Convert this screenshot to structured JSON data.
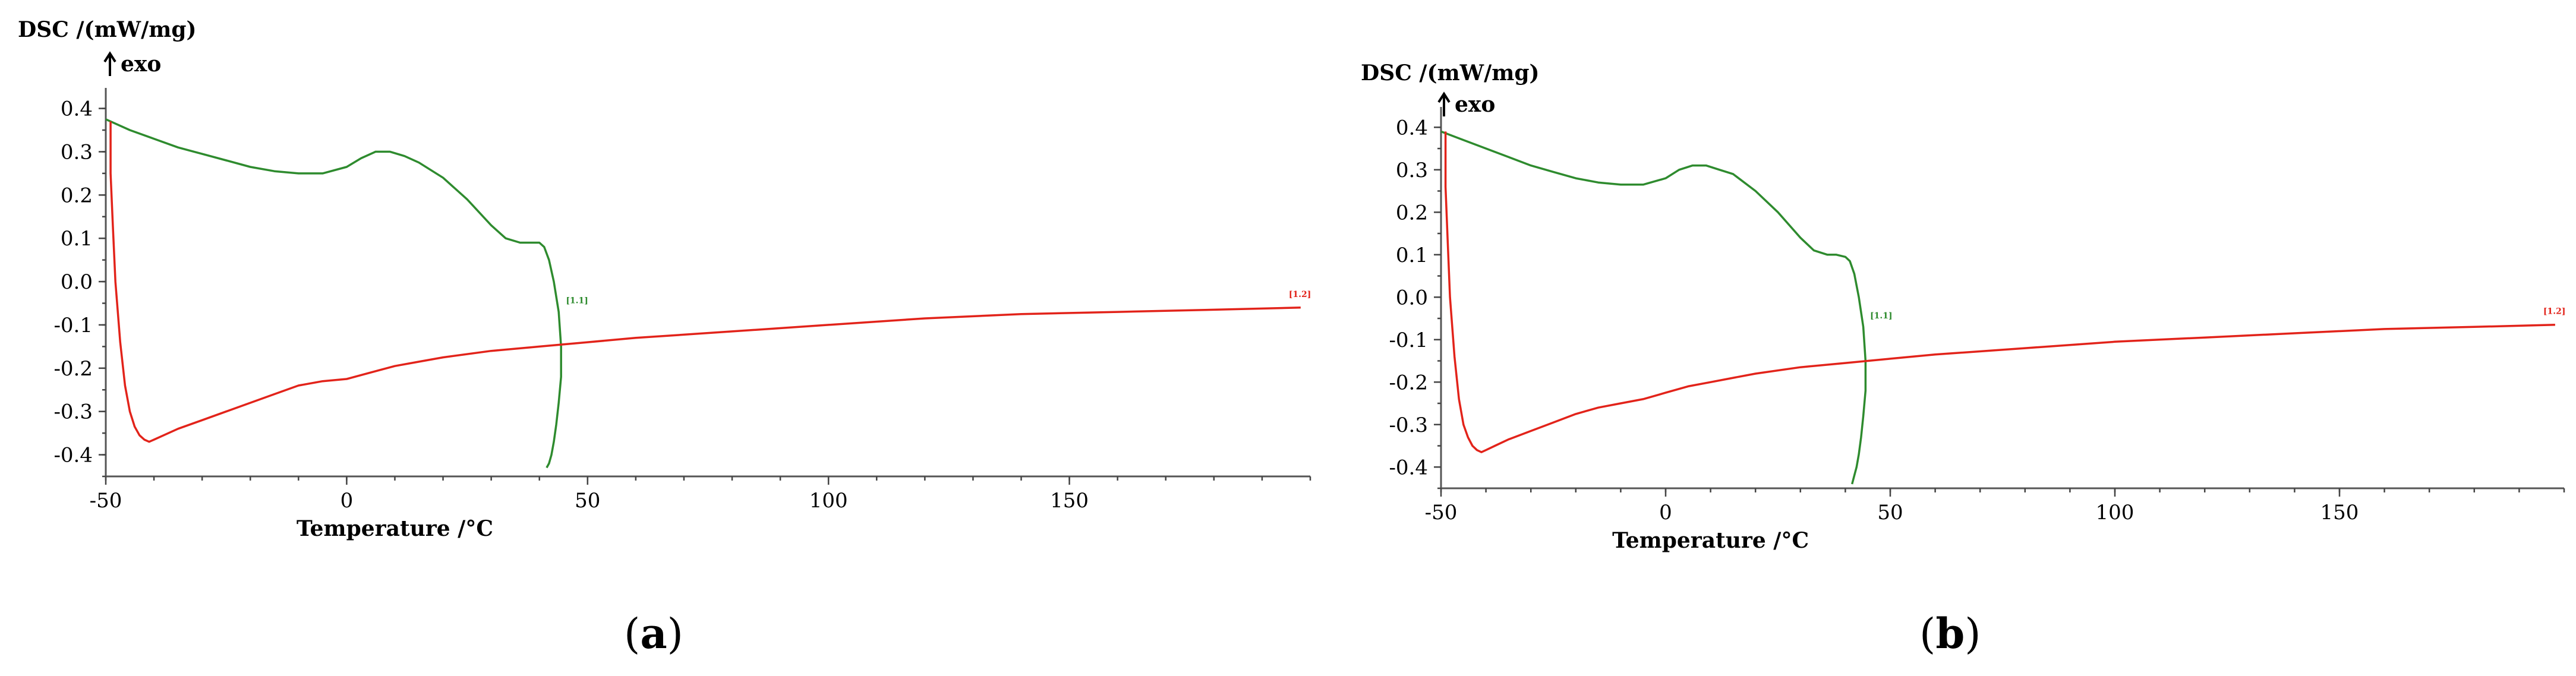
{
  "chart_data": [
    {
      "type": "line",
      "panel_label": "a",
      "ylabel": "DSC /(mW/mg)",
      "y_direction_label": "exo",
      "xlabel": "Temperature /°C",
      "xlim": [
        -50,
        200
      ],
      "ylim": [
        -0.45,
        0.42
      ],
      "x_ticks": [
        -50,
        0,
        50,
        100,
        150
      ],
      "y_ticks": [
        0.4,
        0.3,
        0.2,
        0.1,
        0.0,
        -0.1,
        -0.2,
        -0.3,
        -0.4
      ],
      "x_tick_labels": [
        "-50",
        "0",
        "50",
        "100",
        "150"
      ],
      "y_tick_labels": [
        "0.4",
        "0.3",
        "0.2",
        "0.1",
        "0.0",
        "-0.1",
        "-0.2",
        "-0.3",
        "-0.4"
      ],
      "grid": false,
      "series": [
        {
          "name": "[1.1]",
          "color": "#2e8b2e",
          "x": [
            -50,
            -45,
            -40,
            -35,
            -30,
            -25,
            -20,
            -15,
            -10,
            -5,
            0,
            3,
            6,
            9,
            12,
            15,
            20,
            25,
            30,
            33,
            36,
            38,
            40,
            41,
            42,
            43,
            44,
            44.5,
            44.5,
            44,
            43.5,
            43,
            42.5,
            42,
            41.5
          ],
          "y": [
            0.375,
            0.35,
            0.33,
            0.31,
            0.295,
            0.28,
            0.265,
            0.255,
            0.25,
            0.25,
            0.265,
            0.285,
            0.3,
            0.3,
            0.29,
            0.275,
            0.24,
            0.19,
            0.13,
            0.1,
            0.09,
            0.09,
            0.09,
            0.08,
            0.05,
            0.0,
            -0.07,
            -0.15,
            -0.22,
            -0.28,
            -0.33,
            -0.37,
            -0.4,
            -0.42,
            -0.43
          ]
        },
        {
          "name": "[1.2]",
          "color": "#e2231a",
          "x": [
            -49,
            -49,
            -48.5,
            -48,
            -47,
            -46,
            -45,
            -44,
            -43,
            -42,
            -41,
            -40,
            -38,
            -35,
            -30,
            -25,
            -20,
            -15,
            -10,
            -5,
            0,
            5,
            10,
            15,
            20,
            30,
            40,
            50,
            60,
            80,
            100,
            120,
            140,
            160,
            180,
            198
          ],
          "y": [
            0.37,
            0.25,
            0.12,
            0.0,
            -0.14,
            -0.24,
            -0.3,
            -0.335,
            -0.355,
            -0.365,
            -0.37,
            -0.365,
            -0.355,
            -0.34,
            -0.32,
            -0.3,
            -0.28,
            -0.26,
            -0.24,
            -0.23,
            -0.225,
            -0.21,
            -0.195,
            -0.185,
            -0.175,
            -0.16,
            -0.15,
            -0.14,
            -0.13,
            -0.115,
            -0.1,
            -0.085,
            -0.075,
            -0.07,
            -0.065,
            -0.06
          ]
        }
      ]
    },
    {
      "type": "line",
      "panel_label": "b",
      "ylabel": "DSC /(mW/mg)",
      "y_direction_label": "exo",
      "xlabel": "Temperature /°C",
      "xlim": [
        -50,
        200
      ],
      "ylim": [
        -0.45,
        0.42
      ],
      "x_ticks": [
        -50,
        0,
        50,
        100,
        150
      ],
      "y_ticks": [
        0.4,
        0.3,
        0.2,
        0.1,
        0.0,
        -0.1,
        -0.2,
        -0.3,
        -0.4
      ],
      "x_tick_labels": [
        "-50",
        "0",
        "50",
        "100",
        "150"
      ],
      "y_tick_labels": [
        "0.4",
        "0.3",
        "0.2",
        "0.1",
        "0.0",
        "-0.1",
        "-0.2",
        "-0.3",
        "-0.4"
      ],
      "grid": false,
      "series": [
        {
          "name": "[1.1]",
          "color": "#2e8b2e",
          "x": [
            -50,
            -45,
            -40,
            -35,
            -30,
            -25,
            -20,
            -15,
            -10,
            -5,
            0,
            3,
            6,
            9,
            12,
            15,
            20,
            25,
            30,
            33,
            36,
            38,
            40,
            41,
            42,
            43,
            44,
            44.5,
            44.5,
            44,
            43.5,
            43,
            42.5,
            42,
            41.5
          ],
          "y": [
            0.39,
            0.37,
            0.35,
            0.33,
            0.31,
            0.295,
            0.28,
            0.27,
            0.265,
            0.265,
            0.28,
            0.3,
            0.31,
            0.31,
            0.3,
            0.29,
            0.25,
            0.2,
            0.14,
            0.11,
            0.1,
            0.1,
            0.095,
            0.085,
            0.055,
            0.0,
            -0.07,
            -0.15,
            -0.22,
            -0.28,
            -0.33,
            -0.37,
            -0.4,
            -0.42,
            -0.44
          ]
        },
        {
          "name": "[1.2]",
          "color": "#e2231a",
          "x": [
            -49,
            -49,
            -48.5,
            -48,
            -47,
            -46,
            -45,
            -44,
            -43,
            -42,
            -41,
            -40,
            -38,
            -35,
            -30,
            -25,
            -20,
            -15,
            -10,
            -5,
            0,
            5,
            10,
            15,
            20,
            30,
            40,
            50,
            60,
            80,
            100,
            120,
            140,
            160,
            180,
            198
          ],
          "y": [
            0.39,
            0.26,
            0.13,
            0.0,
            -0.14,
            -0.24,
            -0.3,
            -0.33,
            -0.35,
            -0.36,
            -0.365,
            -0.36,
            -0.35,
            -0.335,
            -0.315,
            -0.295,
            -0.275,
            -0.26,
            -0.25,
            -0.24,
            -0.225,
            -0.21,
            -0.2,
            -0.19,
            -0.18,
            -0.165,
            -0.155,
            -0.145,
            -0.135,
            -0.12,
            -0.105,
            -0.095,
            -0.085,
            -0.075,
            -0.07,
            -0.065
          ]
        }
      ]
    }
  ]
}
